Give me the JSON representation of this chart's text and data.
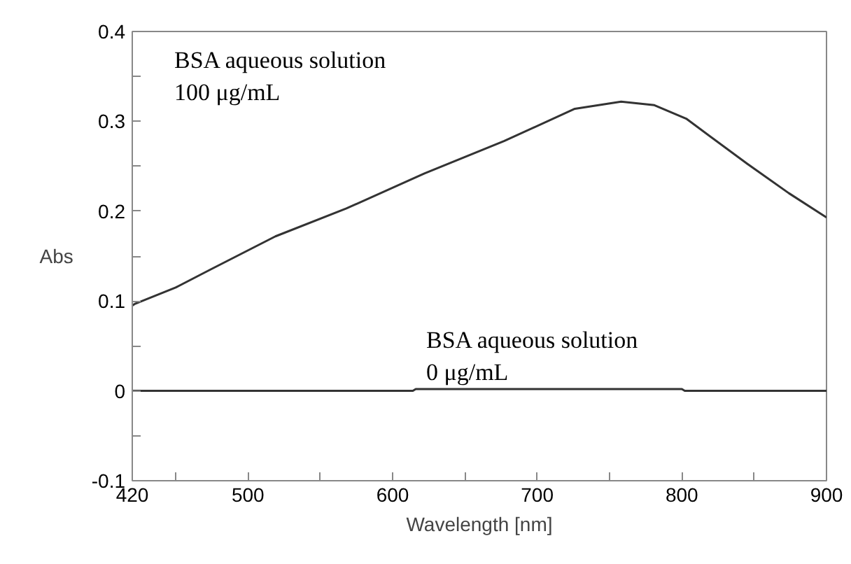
{
  "chart_data": {
    "type": "line",
    "xlabel": "Wavelength [nm]",
    "ylabel": "Abs",
    "xlim": [
      420,
      900
    ],
    "ylim": [
      -0.1,
      0.4
    ],
    "xticks": [
      420,
      {
        "value": 450,
        "label": null
      },
      500,
      {
        "value": 550,
        "label": null
      },
      600,
      {
        "value": 650,
        "label": null
      },
      700,
      {
        "value": 750,
        "label": null
      },
      800,
      {
        "value": 850,
        "label": null
      },
      900
    ],
    "yticks": [
      -0.1,
      {
        "value": -0.05,
        "label": null
      },
      0,
      {
        "value": 0.05,
        "label": null
      },
      0.1,
      {
        "value": 0.15,
        "label": null
      },
      0.2,
      {
        "value": 0.25,
        "label": null
      },
      0.3,
      {
        "value": 0.35,
        "label": null
      },
      0.4
    ],
    "grid": false,
    "marker": "none",
    "line_style": "solid",
    "annotations": [
      "BSA aqueous solution\n100 μg/mL",
      "BSA aqueous solution\n0 μg/mL"
    ],
    "series": [
      {
        "color": "#333333",
        "x": [
          420,
          422,
          450,
          474,
          519,
          568,
          622,
          677,
          726,
          758,
          781,
          803,
          845,
          874,
          900
        ],
        "values": [
          0.095,
          0.097,
          0.115,
          0.135,
          0.172,
          0.203,
          0.242,
          0.278,
          0.314,
          0.322,
          0.318,
          0.303,
          0.253,
          0.22,
          0.193
        ]
      },
      {
        "color": "#333333",
        "x": [
          420,
          614,
          616,
          800,
          802,
          900
        ],
        "values": [
          0,
          0,
          0.002,
          0.002,
          0,
          0
        ]
      }
    ]
  }
}
